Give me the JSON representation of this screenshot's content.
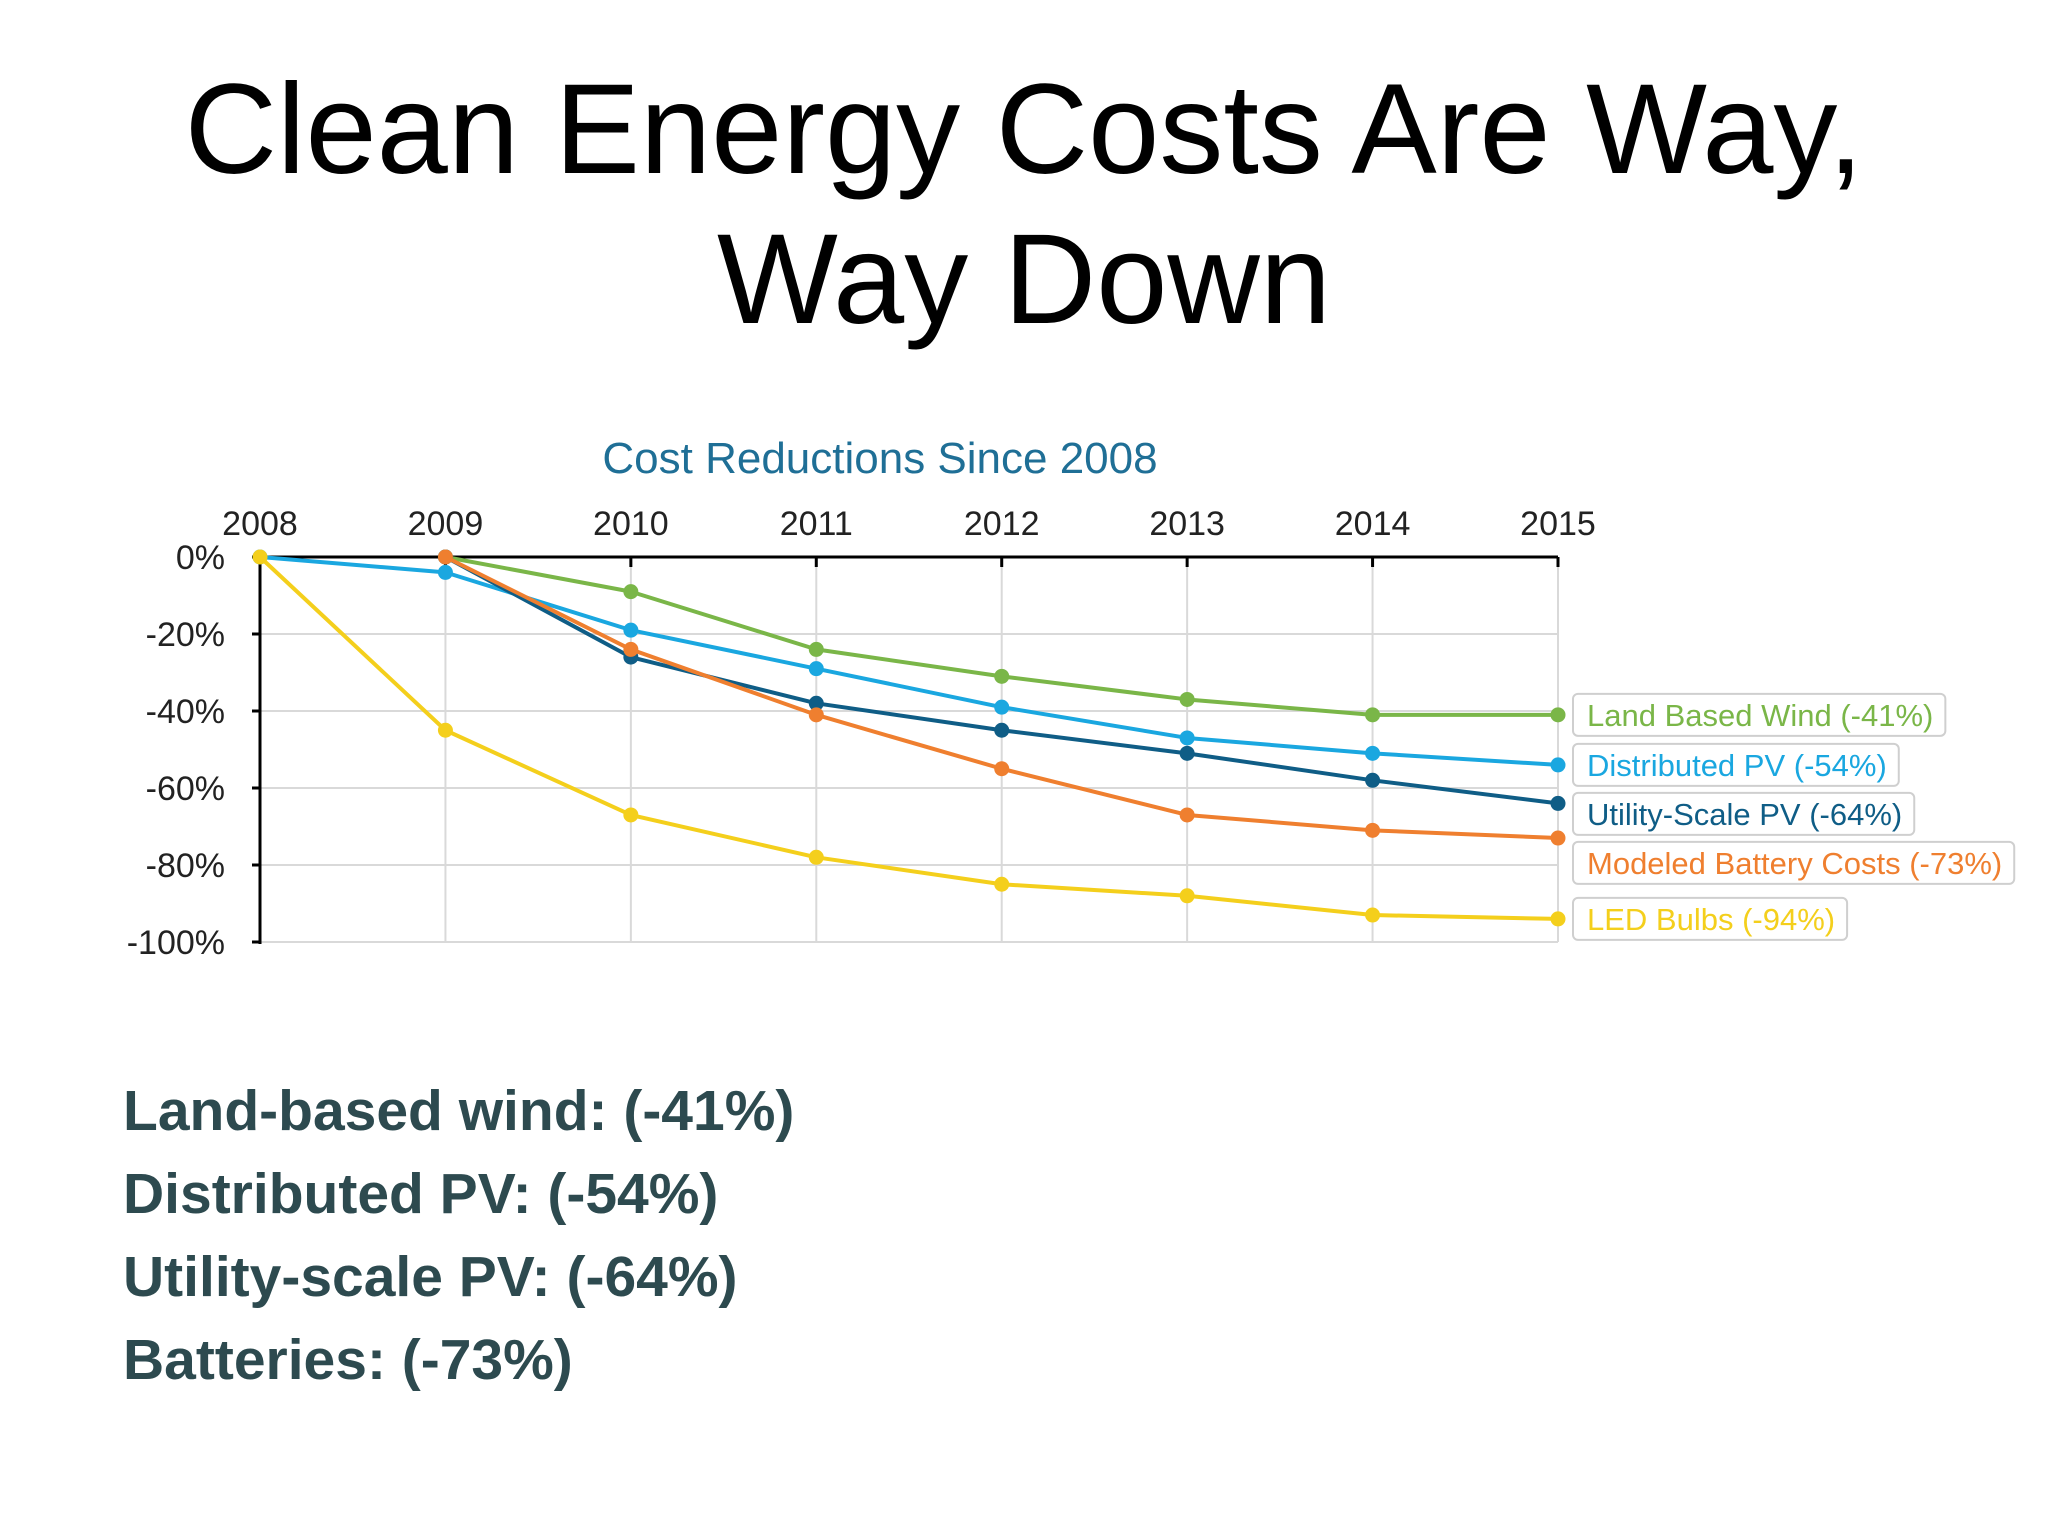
{
  "slide": {
    "title_line1": "Clean Energy Costs Are Way,",
    "title_line2": "Way Down"
  },
  "bullets": [
    "Land-based wind: (-41%)",
    "Distributed PV: (-54%)",
    "Utility-scale PV: (-64%)",
    "Batteries: (-73%)"
  ],
  "chart_data": {
    "type": "line",
    "title": "Cost Reductions Since 2008",
    "x": [
      2008,
      2009,
      2010,
      2011,
      2012,
      2013,
      2014,
      2015
    ],
    "x_tick_labels": [
      "2008",
      "2009",
      "2010",
      "2011",
      "2012",
      "2013",
      "2014",
      "2015"
    ],
    "x_axis_position": "top",
    "ylim": [
      -100,
      0
    ],
    "y_ticks": [
      0,
      -20,
      -40,
      -60,
      -80,
      -100
    ],
    "y_tick_labels": [
      "0%",
      "-20%",
      "-40%",
      "-60%",
      "-80%",
      "-100%"
    ],
    "grid": true,
    "legend_placement": "right, end-of-line labels",
    "series": [
      {
        "name": "Land Based Wind (-41%)",
        "color": "#7ab648",
        "x": [
          2009,
          2010,
          2011,
          2012,
          2013,
          2014,
          2015
        ],
        "values": [
          0,
          -9,
          -24,
          -31,
          -37,
          -41,
          -41
        ]
      },
      {
        "name": "Distributed PV (-54%)",
        "color": "#1aa7e0",
        "x": [
          2008,
          2009,
          2010,
          2011,
          2012,
          2013,
          2014,
          2015
        ],
        "values": [
          0,
          -4,
          -19,
          -29,
          -39,
          -47,
          -51,
          -54
        ]
      },
      {
        "name": "Utility-Scale PV (-64%)",
        "color": "#0f5d86",
        "x": [
          2009,
          2010,
          2011,
          2012,
          2013,
          2014,
          2015
        ],
        "values": [
          0,
          -26,
          -38,
          -45,
          -51,
          -58,
          -64
        ]
      },
      {
        "name": "Modeled Battery Costs (-73%)",
        "color": "#ef7f2f",
        "x": [
          2009,
          2010,
          2011,
          2012,
          2013,
          2014,
          2015
        ],
        "values": [
          0,
          -24,
          -41,
          -55,
          -67,
          -71,
          -73
        ]
      },
      {
        "name": "LED Bulbs (-94%)",
        "color": "#f4cf1c",
        "x": [
          2008,
          2009,
          2010,
          2011,
          2012,
          2013,
          2014,
          2015
        ],
        "values": [
          0,
          -45,
          -67,
          -78,
          -85,
          -88,
          -93,
          -94
        ]
      }
    ],
    "colors": {
      "title": "#1f6f96",
      "axis": "#000000",
      "grid": "#d9d9d9"
    }
  }
}
